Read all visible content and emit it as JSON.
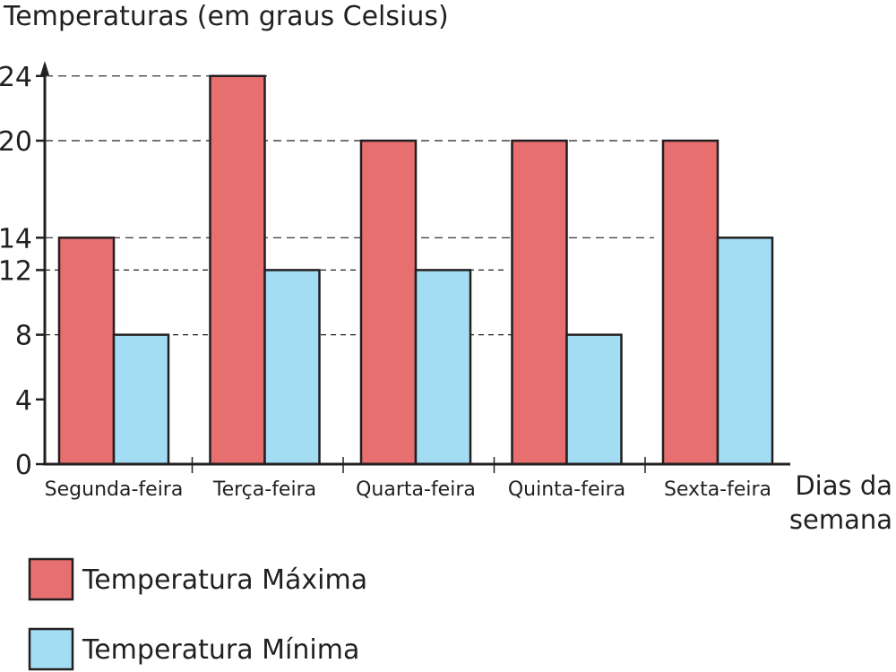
{
  "chart_data": {
    "type": "bar",
    "ylabel": "Temperaturas (em graus Celsius)",
    "xlabel_line1": "Dias da",
    "xlabel_line2": "semana",
    "categories": [
      "Segunda-feira",
      "Terça-feira",
      "Quarta-feira",
      "Quinta-feira",
      "Sexta-feira"
    ],
    "y_ticks": [
      0,
      4,
      8,
      12,
      14,
      20,
      24
    ],
    "series": [
      {
        "name": "Temperatura Máxima",
        "values": [
          14,
          24,
          20,
          20,
          20
        ],
        "color": "#e76f6f"
      },
      {
        "name": "Temperatura Mínima",
        "values": [
          8,
          12,
          12,
          8,
          14
        ],
        "color": "#a2ddf3"
      }
    ],
    "grid": "dashed at 8, 12, 14, 20, 24",
    "legend_position": "bottom-left"
  }
}
